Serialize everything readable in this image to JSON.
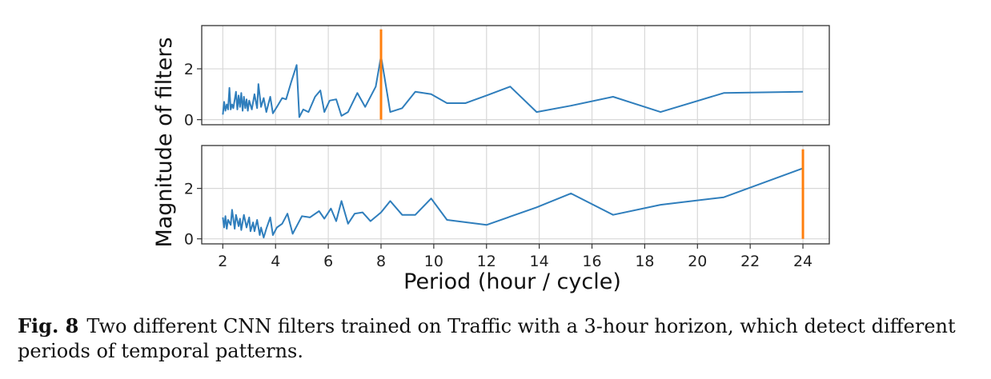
{
  "chart_data": {
    "type": "line",
    "xlabel": "Period (hour / cycle)",
    "ylabel": "Magnitude of filters",
    "xlim": [
      1.2,
      25.0
    ],
    "xticks": [
      2,
      4,
      6,
      8,
      10,
      12,
      14,
      16,
      18,
      20,
      22,
      24
    ],
    "grid": true,
    "panels": [
      {
        "ylim": [
          -0.2,
          3.7
        ],
        "yticks": [
          0,
          2
        ],
        "x": [
          2.0,
          2.04,
          2.09,
          2.13,
          2.18,
          2.23,
          2.29,
          2.34,
          2.4,
          2.46,
          2.53,
          2.6,
          2.67,
          2.74,
          2.82,
          2.91,
          3.0,
          3.1,
          3.2,
          3.31,
          3.43,
          3.56,
          3.69,
          3.84,
          4.0,
          4.17,
          4.36,
          4.57,
          4.8,
          5.05,
          5.33,
          5.65,
          6.0,
          6.4,
          6.86,
          7.38,
          8.0,
          8.73,
          9.6,
          10.67,
          12.0,
          13.71,
          16.0,
          19.2,
          24.0
        ],
        "y": [
          0.2,
          0.65,
          0.3,
          0.55,
          0.4,
          1.25,
          0.35,
          0.5,
          0.4,
          1.1,
          0.35,
          0.95,
          0.45,
          1.05,
          0.3,
          0.9,
          0.4,
          0.75,
          0.35,
          1.0,
          0.45,
          0.85,
          0.3,
          1.4,
          0.5,
          0.9,
          0.35,
          1.45,
          0.25,
          0.6,
          0.9,
          0.35,
          0.3,
          1.05,
          0.5,
          1.35,
          2.45,
          0.3,
          0.65,
          0.95,
          0.7,
          1.35,
          0.3,
          0.85,
          1.1
        ],
        "series_pts": [
          [
            2.0,
            0.2
          ],
          [
            2.05,
            0.7
          ],
          [
            2.1,
            0.35
          ],
          [
            2.15,
            0.6
          ],
          [
            2.2,
            0.4
          ],
          [
            2.25,
            1.25
          ],
          [
            2.3,
            0.4
          ],
          [
            2.35,
            0.6
          ],
          [
            2.4,
            0.45
          ],
          [
            2.5,
            1.1
          ],
          [
            2.55,
            0.4
          ],
          [
            2.6,
            0.95
          ],
          [
            2.65,
            0.5
          ],
          [
            2.7,
            1.05
          ],
          [
            2.75,
            0.35
          ],
          [
            2.8,
            0.9
          ],
          [
            2.85,
            0.45
          ],
          [
            2.9,
            0.8
          ],
          [
            2.95,
            0.35
          ],
          [
            3.0,
            0.75
          ],
          [
            3.1,
            0.4
          ],
          [
            3.2,
            1.0
          ],
          [
            3.3,
            0.45
          ],
          [
            3.35,
            1.4
          ],
          [
            3.45,
            0.5
          ],
          [
            3.55,
            0.85
          ],
          [
            3.65,
            0.3
          ],
          [
            3.8,
            0.9
          ],
          [
            3.9,
            0.25
          ],
          [
            4.05,
            0.5
          ],
          [
            4.25,
            0.85
          ],
          [
            4.4,
            0.8
          ],
          [
            4.6,
            1.5
          ],
          [
            4.8,
            2.15
          ],
          [
            4.9,
            0.1
          ],
          [
            5.05,
            0.4
          ],
          [
            5.25,
            0.3
          ],
          [
            5.5,
            0.9
          ],
          [
            5.7,
            1.15
          ],
          [
            5.85,
            0.3
          ],
          [
            6.05,
            0.75
          ],
          [
            6.3,
            0.8
          ],
          [
            6.5,
            0.15
          ],
          [
            6.75,
            0.3
          ],
          [
            7.1,
            1.05
          ],
          [
            7.4,
            0.5
          ],
          [
            7.8,
            1.3
          ],
          [
            8.0,
            2.5
          ],
          [
            8.35,
            0.3
          ],
          [
            8.8,
            0.45
          ],
          [
            9.3,
            1.1
          ],
          [
            9.9,
            1.0
          ],
          [
            10.5,
            0.65
          ],
          [
            11.2,
            0.65
          ],
          [
            12.0,
            0.95
          ],
          [
            12.9,
            1.3
          ],
          [
            13.9,
            0.3
          ],
          [
            15.2,
            0.55
          ],
          [
            16.8,
            0.9
          ],
          [
            18.6,
            0.3
          ],
          [
            21.0,
            1.05
          ],
          [
            24.0,
            1.1
          ]
        ],
        "peak": {
          "x": 8,
          "y": 3.55
        }
      },
      {
        "ylim": [
          -0.2,
          3.7
        ],
        "yticks": [
          0,
          2
        ],
        "series_pts": [
          [
            2.0,
            0.85
          ],
          [
            2.05,
            0.45
          ],
          [
            2.1,
            0.9
          ],
          [
            2.15,
            0.4
          ],
          [
            2.2,
            0.75
          ],
          [
            2.3,
            0.55
          ],
          [
            2.35,
            1.15
          ],
          [
            2.45,
            0.4
          ],
          [
            2.5,
            0.95
          ],
          [
            2.6,
            0.5
          ],
          [
            2.65,
            0.8
          ],
          [
            2.7,
            0.35
          ],
          [
            2.8,
            0.95
          ],
          [
            2.9,
            0.45
          ],
          [
            3.0,
            0.85
          ],
          [
            3.05,
            0.3
          ],
          [
            3.15,
            0.65
          ],
          [
            3.2,
            0.3
          ],
          [
            3.3,
            0.75
          ],
          [
            3.4,
            0.15
          ],
          [
            3.45,
            0.45
          ],
          [
            3.55,
            0.05
          ],
          [
            3.65,
            0.4
          ],
          [
            3.8,
            0.85
          ],
          [
            3.9,
            0.15
          ],
          [
            4.05,
            0.45
          ],
          [
            4.25,
            0.6
          ],
          [
            4.45,
            1.0
          ],
          [
            4.65,
            0.2
          ],
          [
            5.0,
            0.9
          ],
          [
            5.3,
            0.85
          ],
          [
            5.65,
            1.1
          ],
          [
            5.85,
            0.8
          ],
          [
            6.1,
            1.2
          ],
          [
            6.3,
            0.7
          ],
          [
            6.5,
            1.5
          ],
          [
            6.75,
            0.6
          ],
          [
            7.0,
            1.0
          ],
          [
            7.3,
            1.05
          ],
          [
            7.6,
            0.7
          ],
          [
            8.0,
            1.05
          ],
          [
            8.35,
            1.5
          ],
          [
            8.8,
            0.95
          ],
          [
            9.3,
            0.95
          ],
          [
            9.9,
            1.6
          ],
          [
            10.5,
            0.75
          ],
          [
            12.0,
            0.55
          ],
          [
            13.9,
            1.25
          ],
          [
            15.2,
            1.8
          ],
          [
            16.8,
            0.95
          ],
          [
            18.6,
            1.35
          ],
          [
            21.0,
            1.65
          ],
          [
            24.0,
            2.8
          ]
        ],
        "peak": {
          "x": 24,
          "y": 3.55
        }
      }
    ],
    "colors": {
      "line": "#2f7ebc",
      "peak": "#ff7f0e",
      "grid": "#d8d8d8",
      "axes": "#333333"
    }
  },
  "caption": {
    "label": "Fig. 8",
    "text": "Two different CNN filters trained on Traffic with a 3-hour horizon, which detect different periods of temporal patterns."
  }
}
